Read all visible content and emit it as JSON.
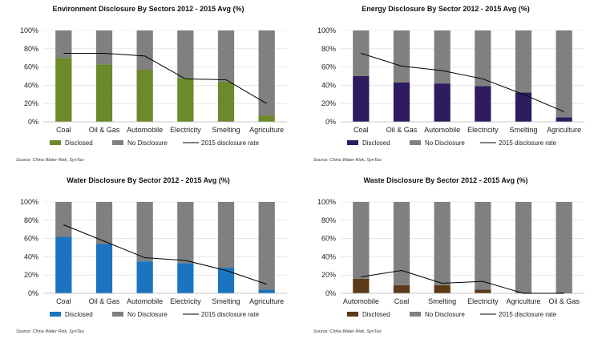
{
  "colors": {
    "no_disclosure": "#808080",
    "line": "#000000",
    "grid": "#d9d9d9"
  },
  "chart_data": [
    {
      "type": "bar",
      "title": "Environment Disclosure By Sectors 2012 - 2015 Avg (%)",
      "categories": [
        "Coal",
        "Oil & Gas",
        "Automobile",
        "Electricity",
        "Smelting",
        "Agriculture"
      ],
      "series": [
        {
          "name": "Disclosed",
          "values": [
            70,
            63,
            57,
            48,
            44,
            7
          ],
          "color": "#6b8a2b"
        },
        {
          "name": "No Disclosure",
          "values": [
            30,
            37,
            43,
            52,
            56,
            93
          ],
          "color": "#808080"
        },
        {
          "name": "2015 disclosure rate",
          "values": [
            75,
            75,
            72,
            47,
            46,
            20
          ],
          "kind": "line"
        }
      ],
      "ylim": [
        0,
        100
      ],
      "yticks": [
        "0%",
        "20%",
        "40%",
        "60%",
        "80%",
        "100%"
      ],
      "source": "Source: China Water Risk, SynTao"
    },
    {
      "type": "bar",
      "title": "Energy Disclosure By Sector 2012 - 2015 Avg (%)",
      "categories": [
        "Coal",
        "Oil & Gas",
        "Automobile",
        "Electricity",
        "Smelting",
        "Agriculture"
      ],
      "series": [
        {
          "name": "Disclosed",
          "values": [
            50,
            43,
            42,
            39,
            32,
            5
          ],
          "color": "#2e1c5e"
        },
        {
          "name": "No Disclosure",
          "values": [
            50,
            57,
            58,
            61,
            68,
            95
          ],
          "color": "#808080"
        },
        {
          "name": "2015 disclosure rate",
          "values": [
            75,
            61,
            56,
            47,
            30,
            11
          ],
          "kind": "line"
        }
      ],
      "ylim": [
        0,
        100
      ],
      "yticks": [
        "0%",
        "20%",
        "40%",
        "60%",
        "80%",
        "100%"
      ],
      "source": "Source: China Water Risk, SynTao"
    },
    {
      "type": "bar",
      "title": "Water Disclosure By Sector 2012 - 2015 Avg (%)",
      "categories": [
        "Coal",
        "Oil & Gas",
        "Automobile",
        "Electricity",
        "Smelting",
        "Agriculture"
      ],
      "series": [
        {
          "name": "Disclosed",
          "values": [
            62,
            54,
            35,
            33,
            28,
            4
          ],
          "color": "#1c74c0"
        },
        {
          "name": "No Disclosure",
          "values": [
            38,
            46,
            65,
            67,
            72,
            96
          ],
          "color": "#808080"
        },
        {
          "name": "2015 disclosure rate",
          "values": [
            75,
            57,
            39,
            36,
            25,
            10
          ],
          "kind": "line"
        }
      ],
      "ylim": [
        0,
        100
      ],
      "yticks": [
        "0%",
        "20%",
        "40%",
        "60%",
        "80%",
        "100%"
      ],
      "source": "Source: China Water Risk, SynTao"
    },
    {
      "type": "bar",
      "title": "Waste Disclosure By Sector 2012 - 2015 Avg (%)",
      "categories": [
        "Automobile",
        "Coal",
        "Smelting",
        "Electricity",
        "Agriculture",
        "Oil & Gas"
      ],
      "series": [
        {
          "name": "Disclosed",
          "values": [
            16,
            9,
            9,
            4,
            1,
            1
          ],
          "color": "#5c3a17"
        },
        {
          "name": "No Disclosure",
          "values": [
            84,
            91,
            91,
            96,
            99,
            99
          ],
          "color": "#808080"
        },
        {
          "name": "2015 disclosure rate",
          "values": [
            18,
            25,
            11,
            13,
            0,
            0
          ],
          "kind": "line"
        }
      ],
      "ylim": [
        0,
        100
      ],
      "yticks": [
        "0%",
        "20%",
        "40%",
        "60%",
        "80%",
        "100%"
      ],
      "source": "Source: China Water Risk, SynTao"
    }
  ]
}
